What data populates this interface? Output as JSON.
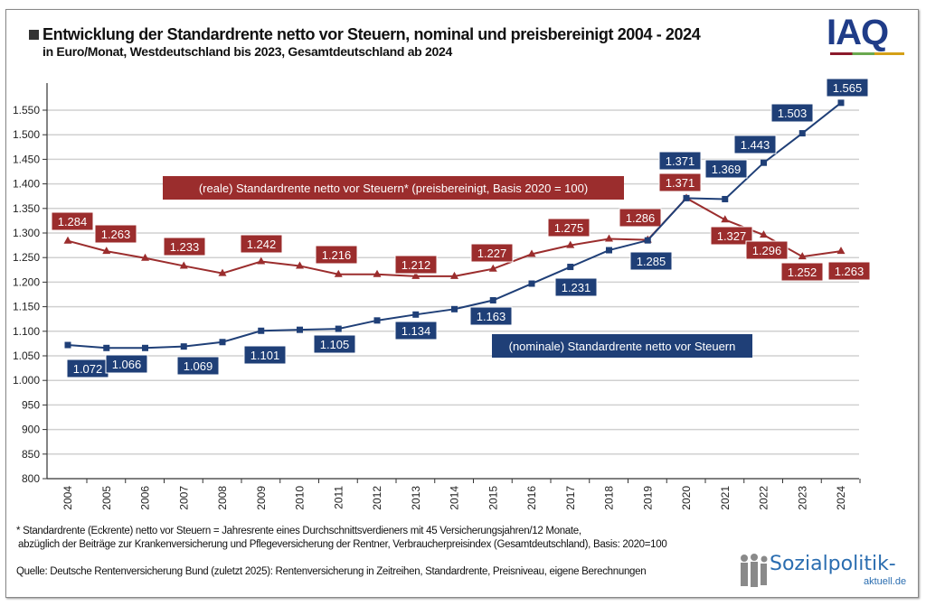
{
  "header": {
    "title": "Entwicklung der Standardrente netto vor Steuern, nominal und preisbereinigt 2004 - 2024",
    "subtitle": "in Euro/Monat, Westdeutschland bis 2023, Gesamtdeutschland ab 2024",
    "logo": "IAQ"
  },
  "chart_data": {
    "type": "line",
    "title": "Entwicklung der Standardrente netto vor Steuern, nominal und preisbereinigt 2004 - 2024",
    "ylim": [
      800,
      1550
    ],
    "yticks": [
      "800",
      "850",
      "900",
      "950",
      "1.000",
      "1.050",
      "1.100",
      "1.150",
      "1.200",
      "1.250",
      "1.300",
      "1.350",
      "1.400",
      "1.450",
      "1.500",
      "1.550"
    ],
    "grid": true,
    "x": [
      "2004",
      "2005",
      "2006",
      "2007",
      "2008",
      "2009",
      "2010",
      "2011",
      "2012",
      "2013",
      "2014",
      "2015",
      "2016",
      "2017",
      "2018",
      "2019",
      "2020",
      "2021",
      "2022",
      "2023",
      "2024"
    ],
    "series": [
      {
        "name": "(reale) Standardrente  netto vor Steuern* (preisbereinigt,  Basis 2020 = 100)",
        "color": "#9b2d2d",
        "marker": "triangle",
        "values": [
          1284,
          1263,
          1249,
          1233,
          1218,
          1242,
          1233,
          1216,
          1216,
          1212,
          1212,
          1227,
          1257,
          1275,
          1288,
          1286,
          1371,
          1327,
          1296,
          1252,
          1263
        ],
        "labels": {
          "2004": "1.284",
          "2005": "1.263",
          "2007": "1.233",
          "2009": "1.242",
          "2011": "1.216",
          "2013": "1.212",
          "2015": "1.227",
          "2017": "1.275",
          "2019": "1.286",
          "2020": "1.371",
          "2021": "1.327",
          "2022": "1.296",
          "2023": "1.252",
          "2024": "1.263"
        }
      },
      {
        "name": "(nominale) Standardrente netto vor Steuern",
        "color": "#1f3f77",
        "marker": "square",
        "values": [
          1072,
          1066,
          1066,
          1069,
          1078,
          1101,
          1103,
          1105,
          1122,
          1134,
          1145,
          1163,
          1197,
          1231,
          1265,
          1285,
          1371,
          1369,
          1443,
          1503,
          1565
        ],
        "labels": {
          "2004": "1.072",
          "2005": "1.066",
          "2007": "1.069",
          "2009": "1.101",
          "2011": "1.105",
          "2013": "1.134",
          "2015": "1.163",
          "2017": "1.231",
          "2019": "1.285",
          "2020": "1.371",
          "2021": "1.369",
          "2022": "1.443",
          "2023": "1.503",
          "2024": "1.565"
        }
      }
    ]
  },
  "footer": {
    "note1": "* Standardrente (Eckrente) netto vor Steuern = Jahresrente eines Durchschnittsverdieners mit 45 Versicherungsjahren/12 Monate,",
    "note2": "abzüglich der Beiträge zur Krankenversicherung und Pflegeversicherung der Rentner, Verbraucherpreisindex (Gesamtdeutschland), Basis: 2020=100",
    "source": "Quelle: Deutsche Rentenversicherung Bund (zuletzt 2025): Rentenversicherung in Zeitreihen, Standardrente, Preisniveau, eigene Berechnungen",
    "brand": "Sozialpolitik-",
    "brand_sub": "aktuell.de"
  }
}
